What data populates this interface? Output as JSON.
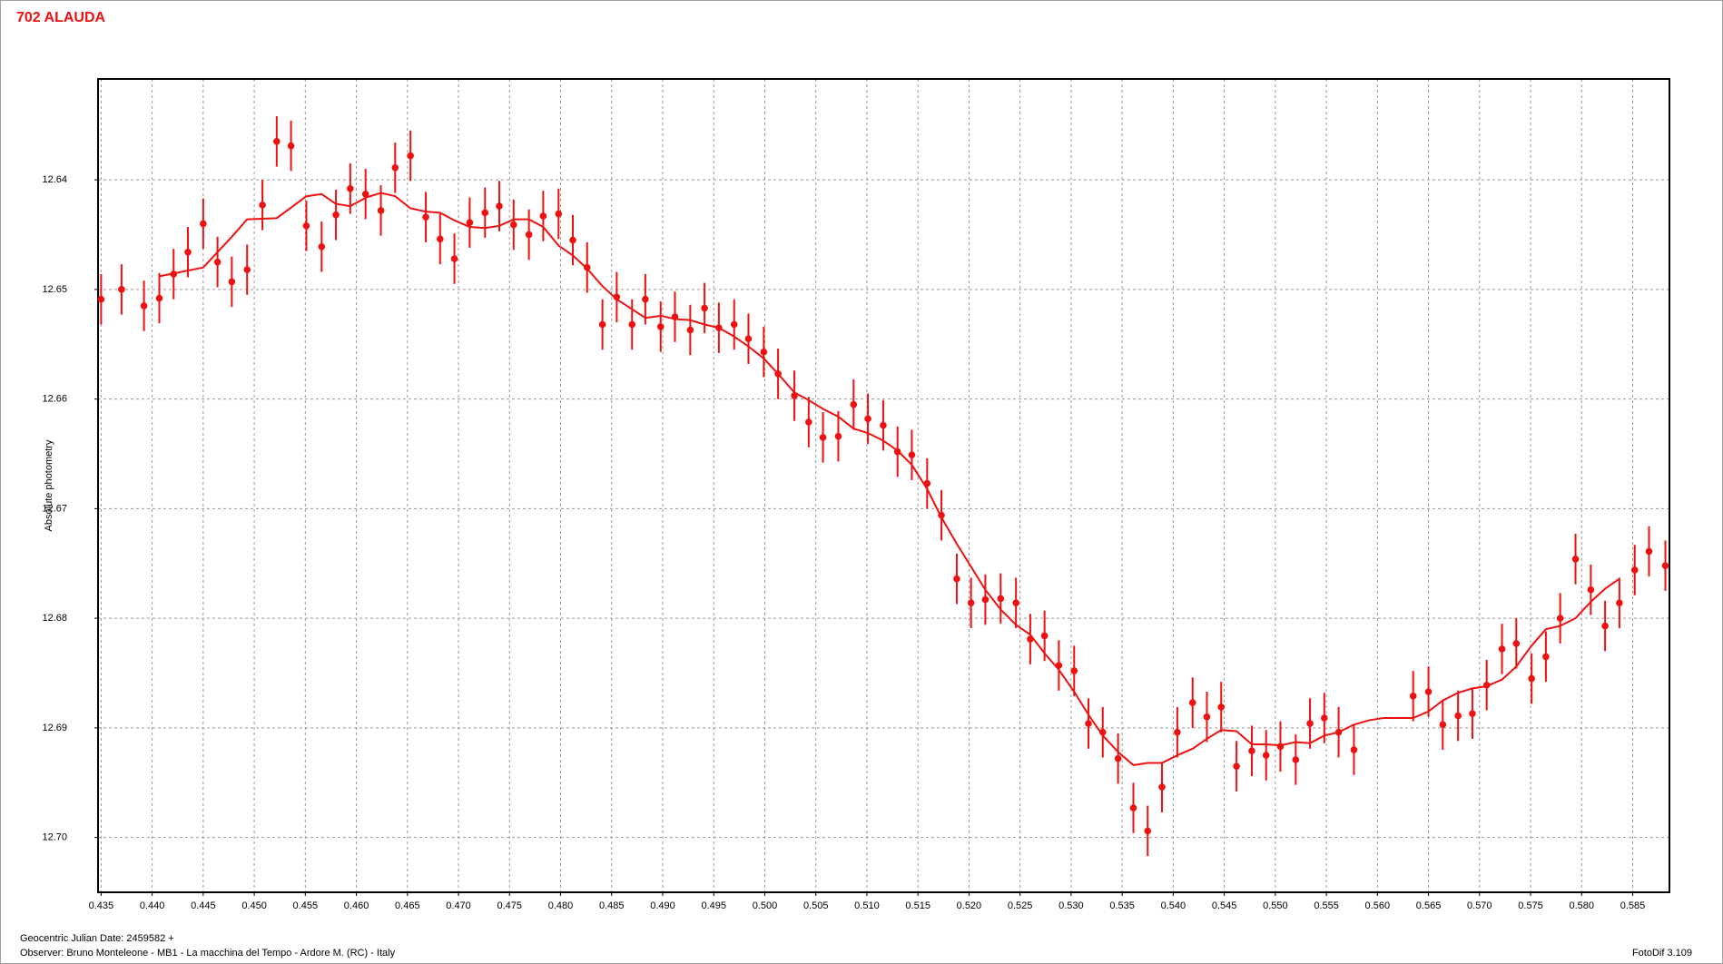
{
  "chart_data": {
    "type": "scatter",
    "title": "702 ALAUDA",
    "ylabel": "Absolute photometry",
    "xlabel": "Geocentric Julian Date: 2459582 +",
    "annotations": [
      "Observer: Bruno Monteleone - MB1 - La macchina del Tempo - Ardore M. (RC) - Italy",
      "FotoDif 3.109"
    ],
    "xlim": [
      0.4347,
      0.5886
    ],
    "ylim": [
      12.6308,
      12.705
    ],
    "invert_y": true,
    "grid": true,
    "xticks": [
      0.435,
      {
        "value": 0.44,
        "label": "0.440"
      },
      0.445,
      {
        "value": 0.45,
        "label": "0.450"
      },
      0.455,
      {
        "value": 0.46,
        "label": "0.460"
      },
      0.465,
      {
        "value": 0.47,
        "label": "0.470"
      },
      0.475,
      {
        "value": 0.48,
        "label": "0.480"
      },
      0.485,
      {
        "value": 0.49,
        "label": "0.490"
      },
      0.495,
      {
        "value": 0.5,
        "label": "0.500"
      },
      0.505,
      {
        "value": 0.51,
        "label": "0.510"
      },
      0.515,
      {
        "value": 0.52,
        "label": "0.520"
      },
      0.525,
      {
        "value": 0.53,
        "label": "0.530"
      },
      0.535,
      {
        "value": 0.54,
        "label": "0.540"
      },
      0.545,
      {
        "value": 0.55,
        "label": "0.550"
      },
      0.555,
      {
        "value": 0.56,
        "label": "0.560"
      },
      0.565,
      {
        "value": 0.57,
        "label": "0.570"
      },
      0.575,
      {
        "value": 0.58,
        "label": "0.580"
      },
      0.585
    ],
    "yticks": [
      12.64,
      12.65,
      12.66,
      12.67,
      12.68,
      12.69,
      {
        "value": 12.7,
        "label": "12.70"
      }
    ],
    "series": [
      {
        "type": "scatter",
        "color": "#ee1111",
        "error": 0.0023,
        "x": [
          0.435,
          0.437,
          0.4392,
          0.4407,
          0.4421,
          0.4435,
          0.445,
          0.4464,
          0.4478,
          0.4493,
          0.4508,
          0.4522,
          0.4536,
          0.4551,
          0.4566,
          0.458,
          0.4594,
          0.4609,
          0.4624,
          0.4638,
          0.4653,
          0.4668,
          0.4682,
          0.4696,
          0.4711,
          0.4726,
          0.474,
          0.4754,
          0.4769,
          0.4783,
          0.4798,
          0.4812,
          0.4826,
          0.4841,
          0.4855,
          0.487,
          0.4883,
          0.4898,
          0.4912,
          0.4927,
          0.4941,
          0.4955,
          0.497,
          0.4984,
          0.4999,
          0.5013,
          0.5029,
          0.5043,
          0.5057,
          0.5072,
          0.5087,
          0.5101,
          0.5116,
          0.513,
          0.5144,
          0.5159,
          0.5173,
          0.5188,
          0.5202,
          0.5216,
          0.5231,
          0.5246,
          0.526,
          0.5274,
          0.5288,
          0.5303,
          0.5317,
          0.5331,
          0.5346,
          0.5361,
          0.5375,
          0.5389,
          0.5404,
          0.5419,
          0.5433,
          0.5447,
          0.5462,
          0.5477,
          0.5491,
          0.5505,
          0.552,
          0.5534,
          0.5548,
          0.5562,
          0.5577,
          0.5635,
          0.565,
          0.5664,
          0.5679,
          0.5693,
          0.5707,
          0.5722,
          0.5736,
          0.5751,
          0.5765,
          0.5779,
          0.5794,
          0.5809,
          0.5823,
          0.5837,
          0.5852,
          0.5866,
          0.5882
        ],
        "values": [
          12.6509,
          12.65,
          12.6515,
          12.6508,
          12.6486,
          12.6466,
          12.644,
          12.6475,
          12.6493,
          12.6482,
          12.6423,
          12.6365,
          12.6369,
          12.6442,
          12.6461,
          12.6432,
          12.6408,
          12.6413,
          12.6428,
          12.6389,
          12.6378,
          12.6434,
          12.6454,
          12.6472,
          12.6439,
          12.643,
          12.6424,
          12.6441,
          12.645,
          12.6433,
          12.6431,
          12.6455,
          12.648,
          12.6532,
          12.6507,
          12.6532,
          12.6509,
          12.6534,
          12.6525,
          12.6537,
          12.6517,
          12.6535,
          12.6532,
          12.6545,
          12.6557,
          12.6577,
          12.6597,
          12.6621,
          12.6635,
          12.6634,
          12.6605,
          12.6618,
          12.6624,
          12.6648,
          12.6651,
          12.6677,
          12.6706,
          12.6764,
          12.6786,
          12.6783,
          12.6782,
          12.6786,
          12.6819,
          12.6816,
          12.6843,
          12.6848,
          12.6896,
          12.6904,
          12.6928,
          12.6973,
          12.6994,
          12.6954,
          12.6904,
          12.6877,
          12.689,
          12.6881,
          12.6935,
          12.6921,
          12.6925,
          12.6917,
          12.6929,
          12.6896,
          12.6891,
          12.6904,
          12.692,
          12.6871,
          12.6867,
          12.6897,
          12.6889,
          12.6887,
          12.6861,
          12.6828,
          12.6823,
          12.6855,
          12.6835,
          12.68,
          12.6746,
          12.6774,
          12.6807,
          12.6786,
          12.6756,
          12.6739,
          12.6752
        ]
      },
      {
        "type": "line",
        "color": "#ee1111",
        "x": [
          0.4407,
          0.445,
          0.4479,
          0.4493,
          0.4522,
          0.4551,
          0.4566,
          0.458,
          0.4594,
          0.461,
          0.4624,
          0.4638,
          0.4653,
          0.4668,
          0.4682,
          0.4696,
          0.4711,
          0.4726,
          0.474,
          0.4754,
          0.4769,
          0.4783,
          0.4798,
          0.4812,
          0.4826,
          0.4841,
          0.4855,
          0.487,
          0.4883,
          0.4898,
          0.4912,
          0.4927,
          0.4941,
          0.4955,
          0.497,
          0.4984,
          0.4999,
          0.5013,
          0.5029,
          0.5043,
          0.5057,
          0.5072,
          0.5087,
          0.5101,
          0.5116,
          0.513,
          0.5144,
          0.5159,
          0.5173,
          0.5188,
          0.5202,
          0.5216,
          0.5231,
          0.5246,
          0.526,
          0.5274,
          0.5288,
          0.5303,
          0.5317,
          0.5331,
          0.5346,
          0.5361,
          0.5375,
          0.5389,
          0.5404,
          0.5419,
          0.5433,
          0.5447,
          0.5462,
          0.5477,
          0.5491,
          0.5505,
          0.552,
          0.5534,
          0.5548,
          0.5562,
          0.5577,
          0.5592,
          0.5606,
          0.5635,
          0.565,
          0.5664,
          0.5679,
          0.5693,
          0.5707,
          0.5722,
          0.5736,
          0.5751,
          0.5765,
          0.5779,
          0.5794,
          0.5809,
          0.5823,
          0.5837
        ],
        "values": [
          12.6488,
          12.648,
          12.6451,
          12.6436,
          12.6435,
          12.6415,
          12.6413,
          12.6422,
          12.6424,
          12.6416,
          12.6412,
          12.6415,
          12.6426,
          12.6429,
          12.643,
          12.6437,
          12.6443,
          12.6444,
          12.6442,
          12.6436,
          12.6436,
          12.6443,
          12.646,
          12.6469,
          12.6481,
          12.6497,
          12.6509,
          12.6518,
          12.6526,
          12.6524,
          12.6527,
          12.6528,
          12.6532,
          12.6535,
          12.6543,
          12.6552,
          12.6563,
          12.6577,
          12.6594,
          12.6601,
          12.6609,
          12.6616,
          12.6627,
          12.6631,
          12.6638,
          12.6647,
          12.666,
          12.6682,
          12.6708,
          12.6732,
          12.6753,
          12.6774,
          12.6792,
          12.6806,
          12.6815,
          12.6832,
          12.6847,
          12.6867,
          12.6888,
          12.6907,
          12.6922,
          12.6934,
          12.6932,
          12.6932,
          12.6925,
          12.6919,
          12.691,
          12.6902,
          12.6903,
          12.6915,
          12.6915,
          12.6916,
          12.6913,
          12.6914,
          12.6907,
          12.6904,
          12.6897,
          12.6893,
          12.6891,
          12.6891,
          12.6885,
          12.6875,
          12.6868,
          12.6864,
          12.6862,
          12.6856,
          12.6844,
          12.6825,
          12.681,
          12.6807,
          12.68,
          12.6785,
          12.6773,
          12.6764
        ]
      }
    ]
  }
}
